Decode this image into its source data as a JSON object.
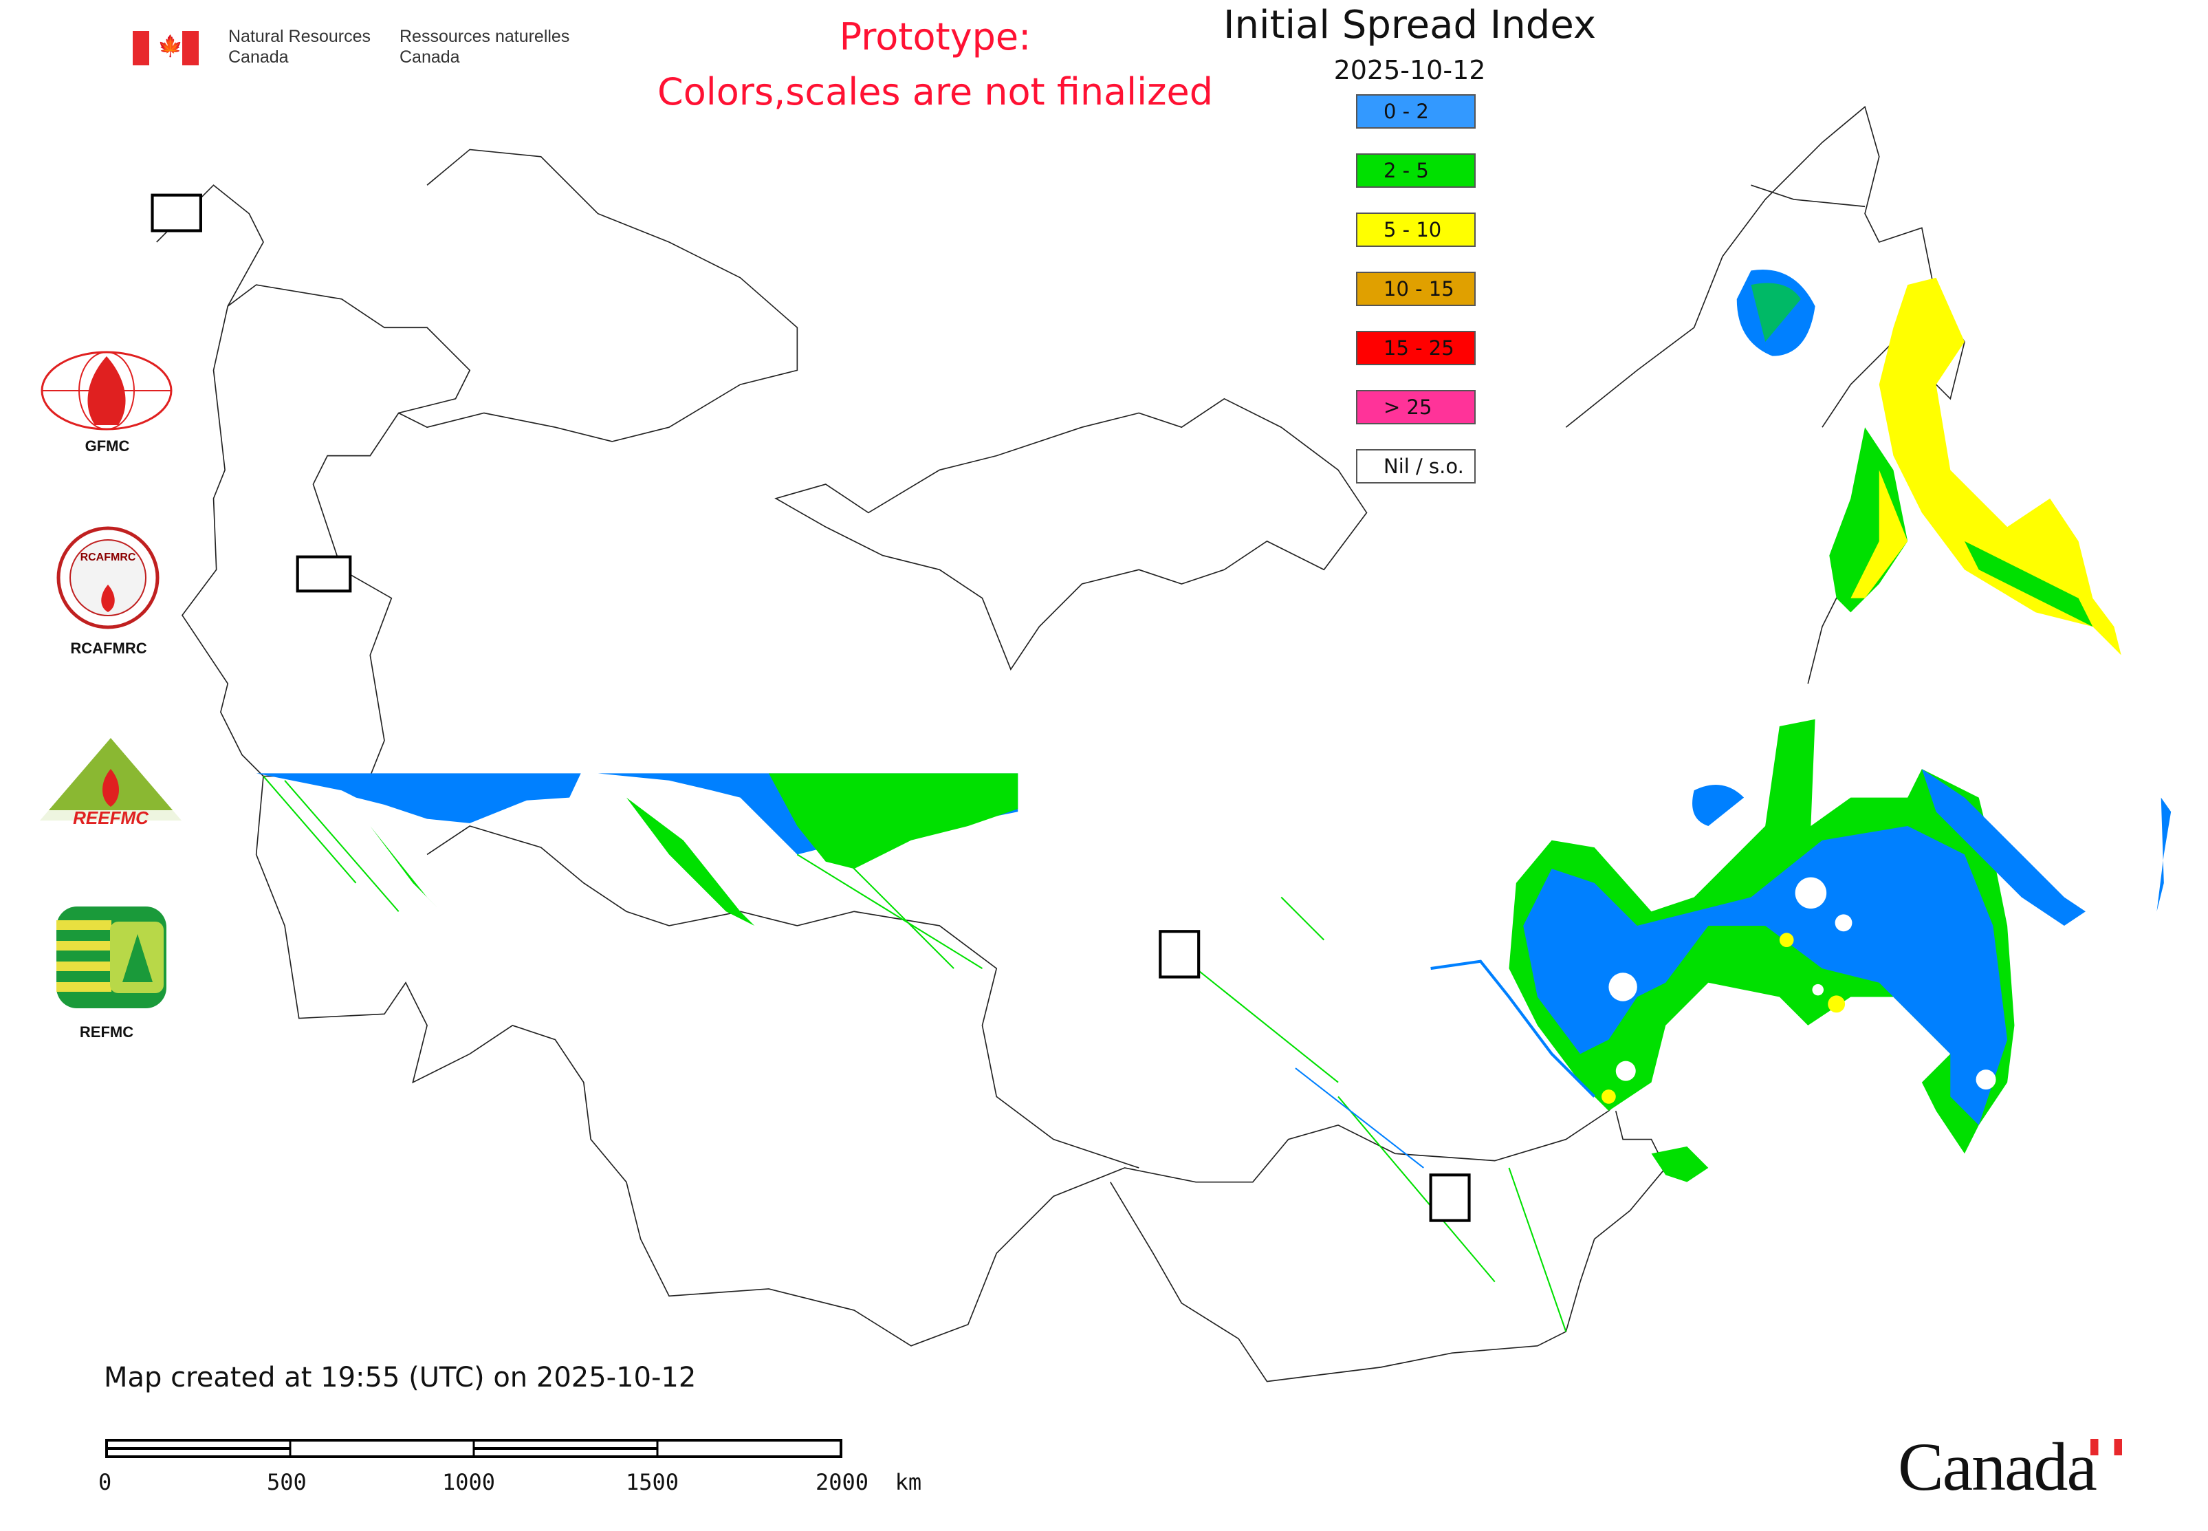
{
  "header": {
    "org_en_line1": "Natural Resources",
    "org_en_line2": "Canada",
    "org_fr_line1": "Ressources naturelles",
    "org_fr_line2": "Canada",
    "prototype_line1": "Prototype:",
    "prototype_line2": "Colors,scales are not finalized"
  },
  "legend": {
    "title": "Initial Spread Index",
    "date": "2025-10-12",
    "items": [
      {
        "label": "0 - 2",
        "color": "#3399ff"
      },
      {
        "label": "2 - 5",
        "color": "#00e000"
      },
      {
        "label": "5 - 10",
        "color": "#ffff00"
      },
      {
        "label": "10 - 15",
        "color": "#e0a000"
      },
      {
        "label": "15 - 25",
        "color": "#ff0000"
      },
      {
        "label": "> 25",
        "color": "#ff3399"
      },
      {
        "label": "Nil / s.o.",
        "color": "#ffffff"
      }
    ]
  },
  "logos": {
    "gfmc": "GFMC",
    "rcafmrc": "RCAFMRC",
    "reefmc": "REEFMC",
    "refmc": "REFMC"
  },
  "footer": {
    "created": "Map created at 19:55 (UTC) on 2025-10-12",
    "scale_labels": [
      "0",
      "500",
      "1000",
      "1500",
      "2000  km"
    ],
    "wordmark": "Canada"
  },
  "colors": {
    "blue": "#0080ff",
    "green": "#00e000",
    "yellow": "#ffff00",
    "red_text": "#ff1133"
  }
}
